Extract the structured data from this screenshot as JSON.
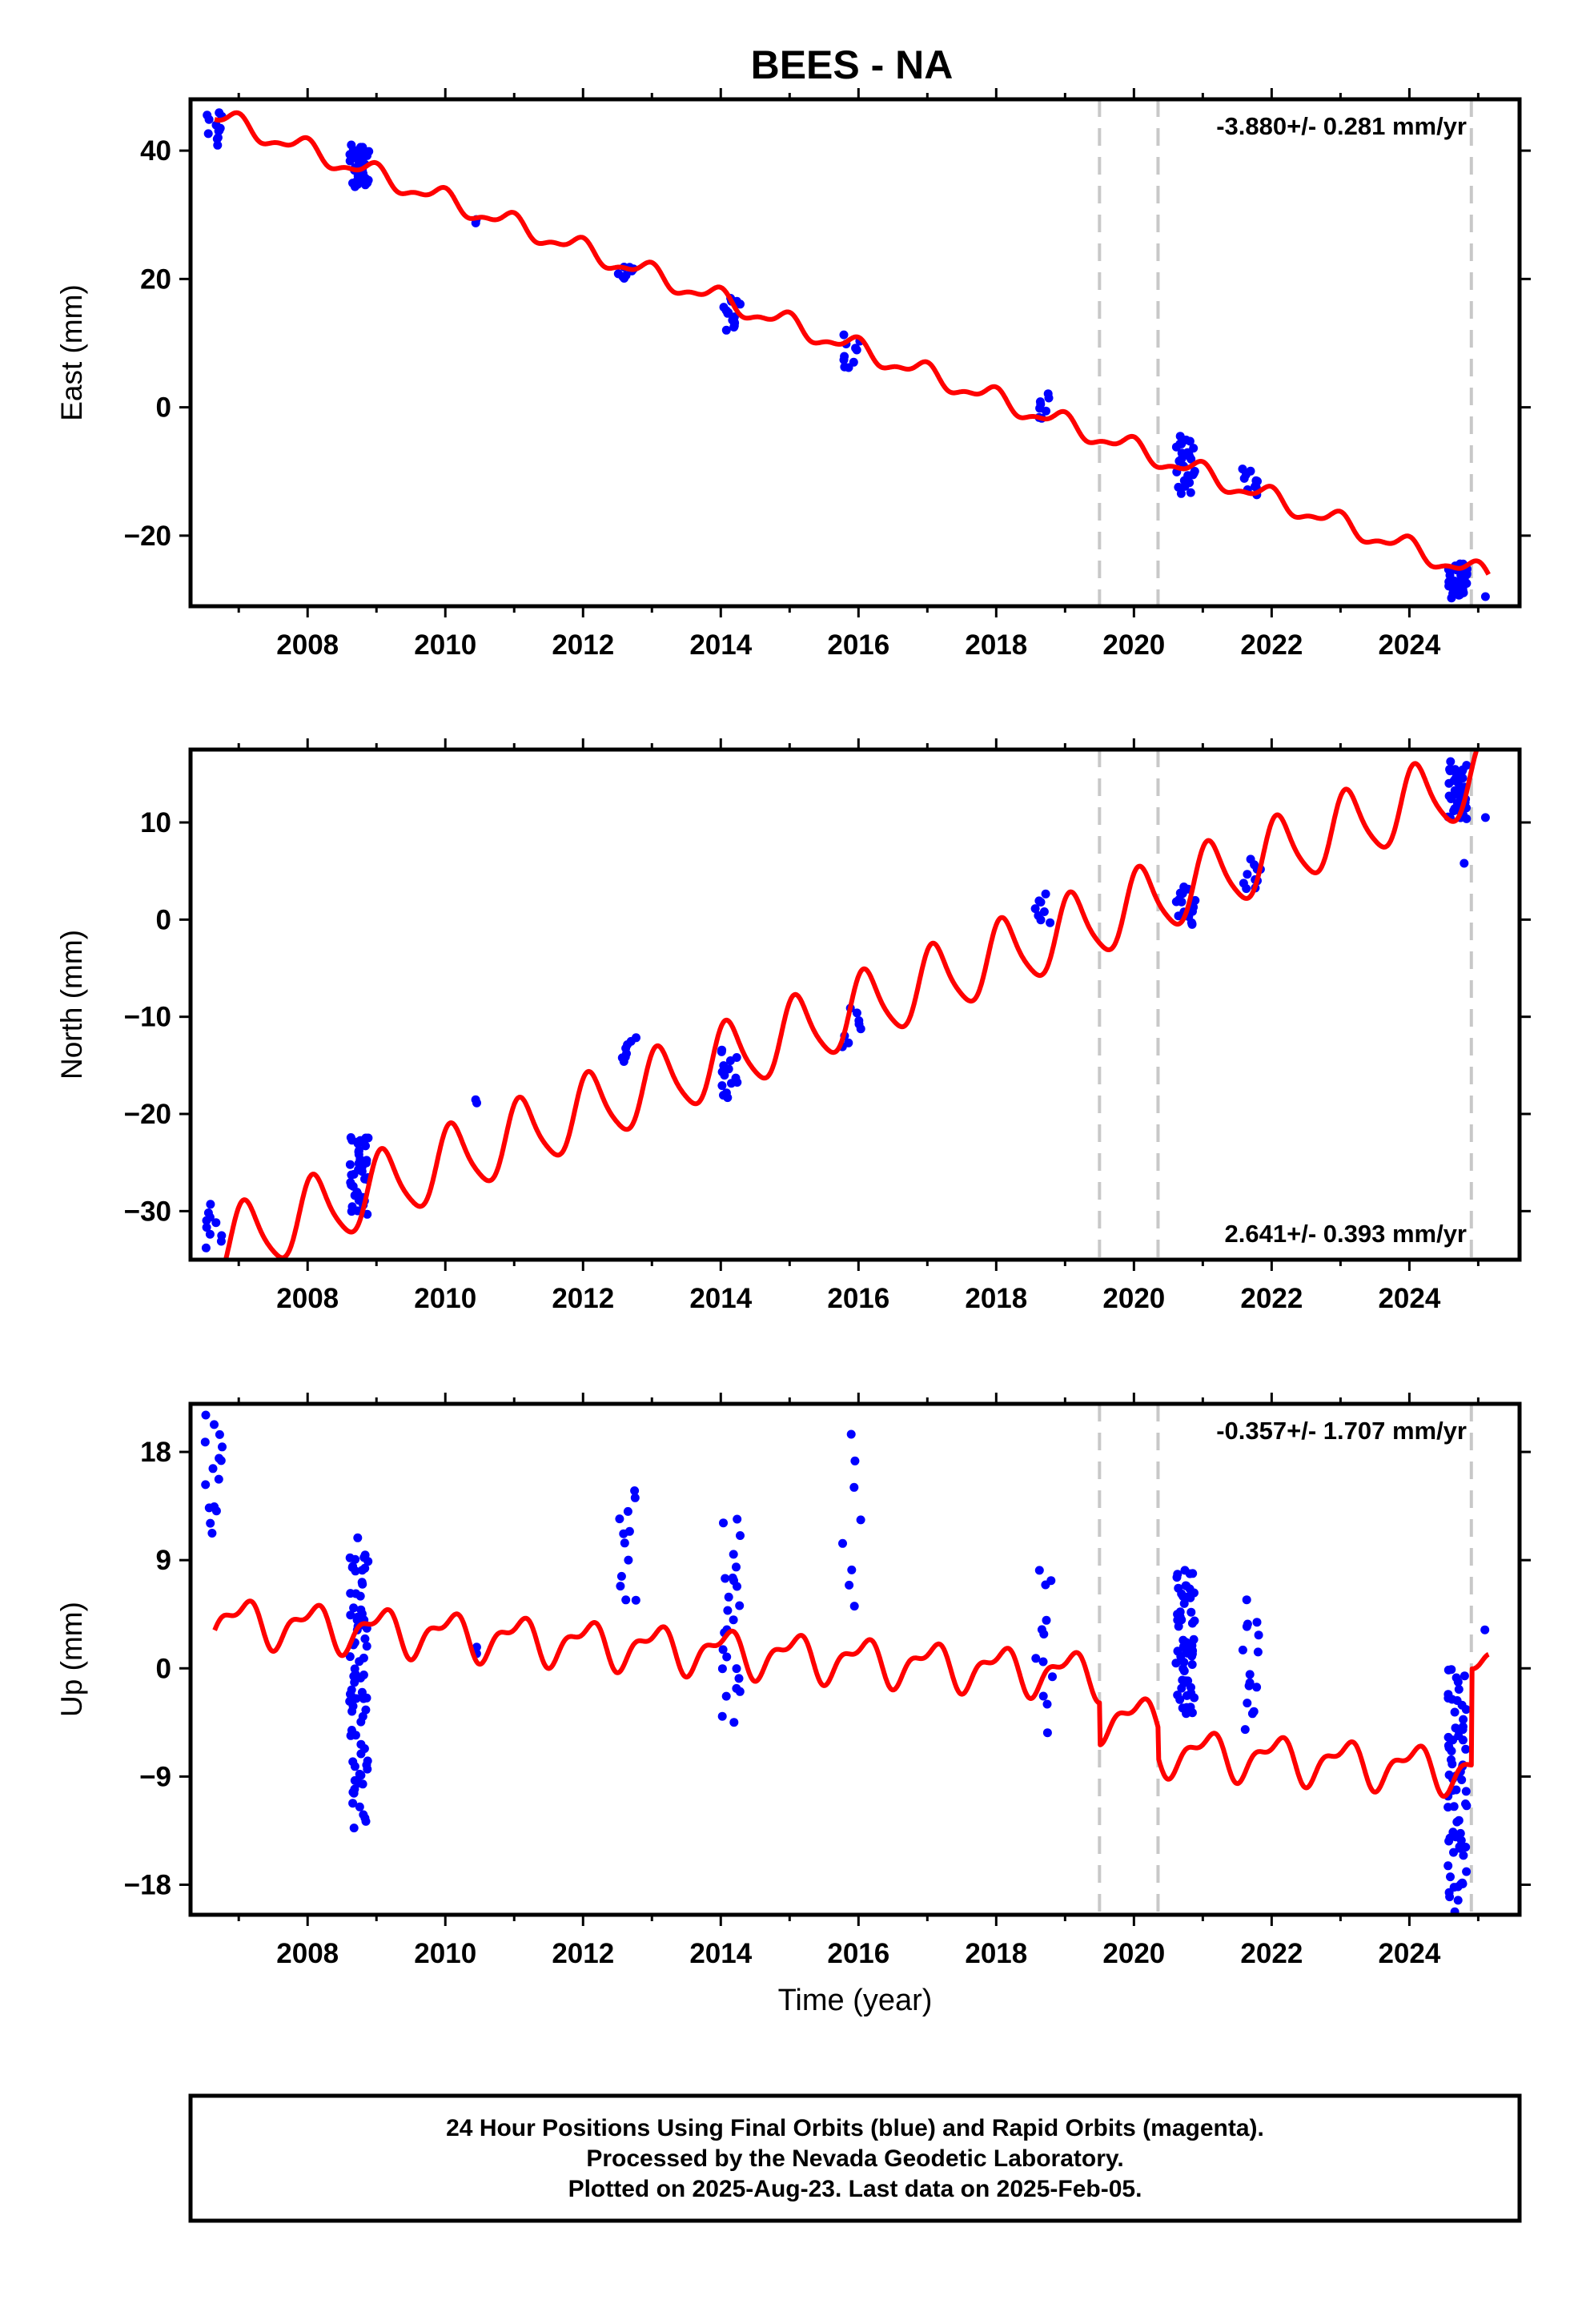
{
  "title": "BEES - NA",
  "xlabel": "Time (year)",
  "caption": {
    "line1": "24 Hour Positions Using Final Orbits (blue) and Rapid Orbits (magenta).",
    "line2": "Processed by the Nevada Geodetic Laboratory.",
    "line3": "Plotted on 2025-Aug-23. Last data on 2025-Feb-05."
  },
  "colors": {
    "data": "#0000ff",
    "model": "#ff0000",
    "event_line": "#c8c8c8",
    "frame": "#000000"
  },
  "chart_data": [
    {
      "type": "scatter",
      "name": "east",
      "ylabel": "East (mm)",
      "rate_text": "-3.880+/- 0.281 mm/yr",
      "rate_position": "top-right",
      "xlim": [
        2006.3,
        2025.6
      ],
      "ylim": [
        -31,
        48
      ],
      "xticks": [
        "2008",
        "2010",
        "2012",
        "2014",
        "2016",
        "2018",
        "2020",
        "2022",
        "2024"
      ],
      "yticks": [
        -20,
        0,
        20,
        40
      ],
      "ytick_labels": [
        "−20",
        "0",
        "20",
        "40"
      ],
      "event_lines": [
        2019.5,
        2020.35,
        2024.9
      ],
      "model": {
        "rate": -3.88,
        "ref_year": 2006.65,
        "offset": 45.3,
        "annual_amp": 1.4,
        "annual_phase": 0.3,
        "semi_amp": 0.6,
        "semi_phase": 1.1,
        "steps": []
      },
      "campaigns": [
        {
          "t": 2006.65,
          "center": 43.5,
          "spread": 5,
          "n": 12
        },
        {
          "t": 2008.75,
          "center": 37.5,
          "spread": 6,
          "n": 40
        },
        {
          "t": 2010.45,
          "center": 29.0,
          "spread": 0.5,
          "n": 2
        },
        {
          "t": 2012.65,
          "center": 21.0,
          "spread": 2,
          "n": 8
        },
        {
          "t": 2014.15,
          "center": 14.5,
          "spread": 5,
          "n": 15
        },
        {
          "t": 2015.9,
          "center": 8.5,
          "spread": 5,
          "n": 10
        },
        {
          "t": 2018.7,
          "center": 0.0,
          "spread": 4,
          "n": 8
        },
        {
          "t": 2020.75,
          "center": -9.0,
          "spread": 8,
          "n": 30
        },
        {
          "t": 2021.7,
          "center": -11.5,
          "spread": 4,
          "n": 10
        },
        {
          "t": 2024.7,
          "center": -27.0,
          "spread": 5,
          "n": 40
        },
        {
          "t": 2025.1,
          "center": -29.5,
          "spread": 0.3,
          "n": 1
        }
      ]
    },
    {
      "type": "scatter",
      "name": "north",
      "ylabel": "North (mm)",
      "rate_text": "2.641+/- 0.393 mm/yr",
      "rate_position": "bottom-right",
      "xlim": [
        2006.3,
        2025.6
      ],
      "ylim": [
        -35,
        17.5
      ],
      "xticks": [
        "2008",
        "2010",
        "2012",
        "2014",
        "2016",
        "2018",
        "2020",
        "2022",
        "2024"
      ],
      "yticks": [
        -30,
        -20,
        -10,
        0,
        10
      ],
      "ytick_labels": [
        "−30",
        "−20",
        "−10",
        "0",
        "10"
      ],
      "event_lines": [
        2019.5,
        2020.35,
        2024.9
      ],
      "model": {
        "rate": 2.641,
        "ref_year": 2006.65,
        "offset": -34.0,
        "annual_amp": 3.6,
        "annual_phase": 0.15,
        "semi_amp": 0.6,
        "semi_phase": 0.6,
        "steps": []
      },
      "campaigns": [
        {
          "t": 2006.65,
          "center": -31.5,
          "spread": 4,
          "n": 10
        },
        {
          "t": 2008.75,
          "center": -26.0,
          "spread": 8,
          "n": 40
        },
        {
          "t": 2010.45,
          "center": -18.7,
          "spread": 0.3,
          "n": 2
        },
        {
          "t": 2012.65,
          "center": -13.5,
          "spread": 2.5,
          "n": 8
        },
        {
          "t": 2014.15,
          "center": -16.0,
          "spread": 5,
          "n": 15
        },
        {
          "t": 2015.9,
          "center": -11.0,
          "spread": 4,
          "n": 8
        },
        {
          "t": 2018.7,
          "center": 1.0,
          "spread": 3,
          "n": 8
        },
        {
          "t": 2020.75,
          "center": 1.5,
          "spread": 4,
          "n": 20
        },
        {
          "t": 2021.7,
          "center": 4.5,
          "spread": 3,
          "n": 10
        },
        {
          "t": 2024.7,
          "center": 13.0,
          "spread": 6,
          "n": 40
        },
        {
          "t": 2024.8,
          "center": 5.8,
          "spread": 0.2,
          "n": 1
        },
        {
          "t": 2025.1,
          "center": 10.5,
          "spread": 0.3,
          "n": 1
        }
      ]
    },
    {
      "type": "scatter",
      "name": "up",
      "ylabel": "Up (mm)",
      "rate_text": "-0.357+/- 1.707 mm/yr",
      "rate_position": "top-right",
      "xlim": [
        2006.3,
        2025.6
      ],
      "ylim": [
        -20.5,
        22
      ],
      "xticks": [
        "2008",
        "2010",
        "2012",
        "2014",
        "2016",
        "2018",
        "2020",
        "2022",
        "2024"
      ],
      "yticks": [
        -18,
        -9,
        0,
        9,
        18
      ],
      "ytick_labels": [
        "−18",
        "−9",
        "0",
        "9",
        "18"
      ],
      "event_lines": [
        2019.5,
        2020.35,
        2024.9
      ],
      "model": {
        "rate": -0.357,
        "ref_year": 2006.65,
        "offset": 4.0,
        "annual_amp": 1.6,
        "annual_phase": 0.2,
        "semi_amp": 0.8,
        "semi_phase": 0.9,
        "steps": [
          {
            "t": 2019.5,
            "dy": -3.5
          },
          {
            "t": 2020.35,
            "dy": -2.5
          },
          {
            "t": 2024.9,
            "dy": 8.0
          }
        ]
      },
      "campaigns": [
        {
          "t": 2006.65,
          "center": 16.0,
          "spread": 10,
          "n": 15
        },
        {
          "t": 2008.75,
          "center": -1.0,
          "spread": 22,
          "n": 80
        },
        {
          "t": 2010.45,
          "center": 1.5,
          "spread": 0.5,
          "n": 2
        },
        {
          "t": 2012.65,
          "center": 10.5,
          "spread": 10,
          "n": 12
        },
        {
          "t": 2014.15,
          "center": 3.5,
          "spread": 17,
          "n": 25
        },
        {
          "t": 2015.9,
          "center": 12.0,
          "spread": 14,
          "n": 8
        },
        {
          "t": 2018.7,
          "center": 2.0,
          "spread": 13,
          "n": 12
        },
        {
          "t": 2020.75,
          "center": 2.0,
          "spread": 12,
          "n": 60
        },
        {
          "t": 2021.7,
          "center": 0.0,
          "spread": 10,
          "n": 15
        },
        {
          "t": 2024.7,
          "center": -10.0,
          "spread": 20,
          "n": 70
        },
        {
          "t": 2025.1,
          "center": 3.2,
          "spread": 0.3,
          "n": 1
        }
      ]
    }
  ]
}
